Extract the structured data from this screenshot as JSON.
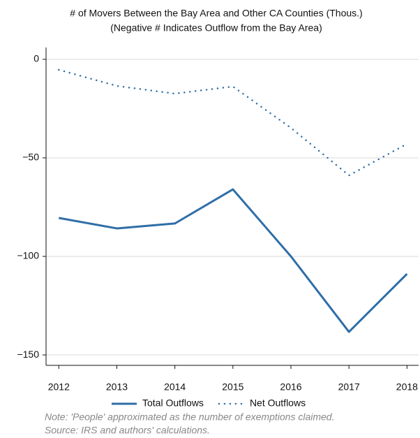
{
  "chart_data": {
    "type": "line",
    "title": [
      "# of Movers Between the Bay Area and Other CA Counties (Thous.)",
      "(Negative # Indicates Outflow from the Bay Area)"
    ],
    "x": [
      2012,
      2013,
      2014,
      2015,
      2016,
      2017,
      2018
    ],
    "series": [
      {
        "name": "Total Outflows",
        "color": "#2f6ea7",
        "style": "solid",
        "values": [
          -80.5,
          -85.8,
          -83.3,
          -66,
          -100,
          -138.3,
          -108.9
        ]
      },
      {
        "name": "Net Outflows",
        "color": "#2f6ea7",
        "style": "dotted",
        "values": [
          -5.3,
          -13.5,
          -17.4,
          -13.8,
          -34.8,
          -58.9,
          -42.9
        ]
      }
    ],
    "xlim": [
      2011.78,
      2018.2
    ],
    "xticks": [
      2012,
      2013,
      2014,
      2015,
      2016,
      2017,
      2018
    ],
    "ylim": [
      -155.3,
      6
    ],
    "yticks": [
      0,
      {
        "value": -50,
        "label": "−50"
      },
      {
        "value": -100,
        "label": "−100"
      },
      {
        "value": -150,
        "label": "−150"
      }
    ],
    "grid": true,
    "notes": [
      "Note: 'People' approximated as the number of exemptions claimed.",
      "Source: IRS and authors' calculations."
    ]
  }
}
